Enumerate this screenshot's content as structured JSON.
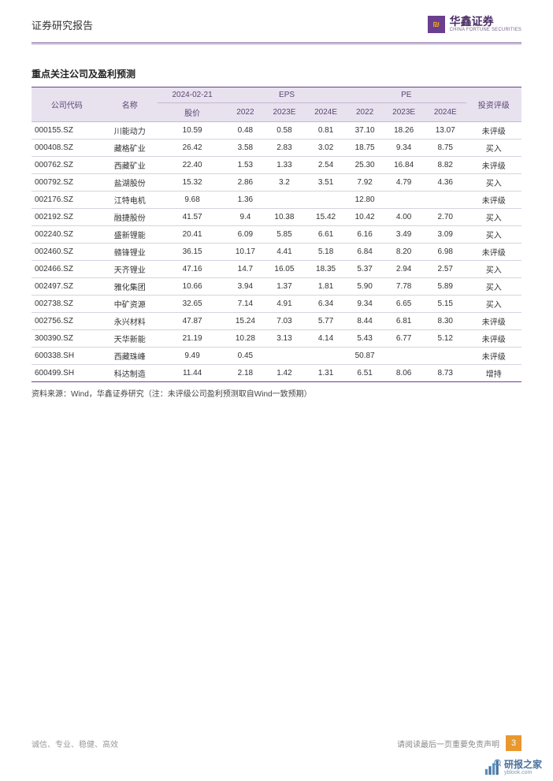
{
  "header": {
    "title": "证券研究报告",
    "brand_cn": "华鑫证券",
    "brand_en": "CHINA FORTUNE SECURITIES"
  },
  "table": {
    "title": "重点关注公司及盈利预测",
    "header_row1": {
      "code": "公司代码",
      "name": "名称",
      "price_date": "2024-02-21",
      "eps": "EPS",
      "pe": "PE",
      "rating": "投资评级"
    },
    "header_row2": {
      "price": "股价",
      "eps2022": "2022",
      "eps2023e": "2023E",
      "eps2024e": "2024E",
      "pe2022": "2022",
      "pe2023e": "2023E",
      "pe2024e": "2024E"
    },
    "rows": [
      {
        "code": "000155.SZ",
        "name": "川能动力",
        "price": "10.59",
        "eps2022": "0.48",
        "eps2023e": "0.58",
        "eps2024e": "0.81",
        "pe2022": "37.10",
        "pe2023e": "18.26",
        "pe2024e": "13.07",
        "rating": "未评级"
      },
      {
        "code": "000408.SZ",
        "name": "藏格矿业",
        "price": "26.42",
        "eps2022": "3.58",
        "eps2023e": "2.83",
        "eps2024e": "3.02",
        "pe2022": "18.75",
        "pe2023e": "9.34",
        "pe2024e": "8.75",
        "rating": "买入"
      },
      {
        "code": "000762.SZ",
        "name": "西藏矿业",
        "price": "22.40",
        "eps2022": "1.53",
        "eps2023e": "1.33",
        "eps2024e": "2.54",
        "pe2022": "25.30",
        "pe2023e": "16.84",
        "pe2024e": "8.82",
        "rating": "未评级"
      },
      {
        "code": "000792.SZ",
        "name": "盐湖股份",
        "price": "15.32",
        "eps2022": "2.86",
        "eps2023e": "3.2",
        "eps2024e": "3.51",
        "pe2022": "7.92",
        "pe2023e": "4.79",
        "pe2024e": "4.36",
        "rating": "买入"
      },
      {
        "code": "002176.SZ",
        "name": "江特电机",
        "price": "9.68",
        "eps2022": "1.36",
        "eps2023e": "",
        "eps2024e": "",
        "pe2022": "12.80",
        "pe2023e": "",
        "pe2024e": "",
        "rating": "未评级"
      },
      {
        "code": "002192.SZ",
        "name": "融捷股份",
        "price": "41.57",
        "eps2022": "9.4",
        "eps2023e": "10.38",
        "eps2024e": "15.42",
        "pe2022": "10.42",
        "pe2023e": "4.00",
        "pe2024e": "2.70",
        "rating": "买入"
      },
      {
        "code": "002240.SZ",
        "name": "盛新锂能",
        "price": "20.41",
        "eps2022": "6.09",
        "eps2023e": "5.85",
        "eps2024e": "6.61",
        "pe2022": "6.16",
        "pe2023e": "3.49",
        "pe2024e": "3.09",
        "rating": "买入"
      },
      {
        "code": "002460.SZ",
        "name": "赣锋锂业",
        "price": "36.15",
        "eps2022": "10.17",
        "eps2023e": "4.41",
        "eps2024e": "5.18",
        "pe2022": "6.84",
        "pe2023e": "8.20",
        "pe2024e": "6.98",
        "rating": "未评级"
      },
      {
        "code": "002466.SZ",
        "name": "天齐锂业",
        "price": "47.16",
        "eps2022": "14.7",
        "eps2023e": "16.05",
        "eps2024e": "18.35",
        "pe2022": "5.37",
        "pe2023e": "2.94",
        "pe2024e": "2.57",
        "rating": "买入"
      },
      {
        "code": "002497.SZ",
        "name": "雅化集团",
        "price": "10.66",
        "eps2022": "3.94",
        "eps2023e": "1.37",
        "eps2024e": "1.81",
        "pe2022": "5.90",
        "pe2023e": "7.78",
        "pe2024e": "5.89",
        "rating": "买入"
      },
      {
        "code": "002738.SZ",
        "name": "中矿资源",
        "price": "32.65",
        "eps2022": "7.14",
        "eps2023e": "4.91",
        "eps2024e": "6.34",
        "pe2022": "9.34",
        "pe2023e": "6.65",
        "pe2024e": "5.15",
        "rating": "买入"
      },
      {
        "code": "002756.SZ",
        "name": "永兴材料",
        "price": "47.87",
        "eps2022": "15.24",
        "eps2023e": "7.03",
        "eps2024e": "5.77",
        "pe2022": "8.44",
        "pe2023e": "6.81",
        "pe2024e": "8.30",
        "rating": "未评级"
      },
      {
        "code": "300390.SZ",
        "name": "天华新能",
        "price": "21.19",
        "eps2022": "10.28",
        "eps2023e": "3.13",
        "eps2024e": "4.14",
        "pe2022": "5.43",
        "pe2023e": "6.77",
        "pe2024e": "5.12",
        "rating": "未评级"
      },
      {
        "code": "600338.SH",
        "name": "西藏珠峰",
        "price": "9.49",
        "eps2022": "0.45",
        "eps2023e": "",
        "eps2024e": "",
        "pe2022": "50.87",
        "pe2023e": "",
        "pe2024e": "",
        "rating": "未评级"
      },
      {
        "code": "600499.SH",
        "name": "科达制造",
        "price": "11.44",
        "eps2022": "2.18",
        "eps2023e": "1.42",
        "eps2024e": "1.31",
        "pe2022": "6.51",
        "pe2023e": "8.06",
        "pe2024e": "8.73",
        "rating": "增持"
      }
    ],
    "source": "资料来源：Wind，华鑫证券研究（注：未评级公司盈利预测取自Wind一致预期）"
  },
  "footer": {
    "left": "诚信、专业、稳健、高效",
    "disclaimer": "请阅读最后一页重要免责声明",
    "page": "3"
  },
  "watermark": {
    "cn": "研报之家",
    "en": "yblook.com"
  },
  "styling": {
    "header_bg": "#e8e2ef",
    "header_text": "#5a4573",
    "row_border": "#d9d0e3",
    "outer_border": "#6b3f8f",
    "page_badge_bg": "#e8982e",
    "font_size_table": 10,
    "font_size_title": 12
  }
}
